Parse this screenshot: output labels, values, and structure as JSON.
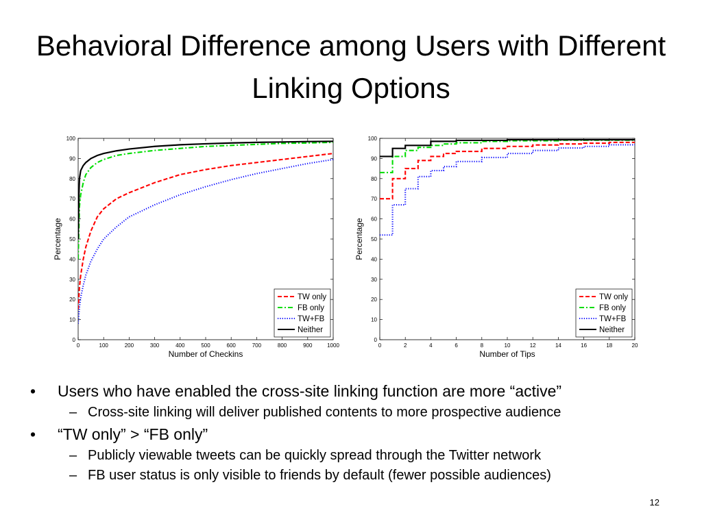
{
  "slide": {
    "title": "Behavioral Difference among Users with Different Linking Options",
    "page_number": "12",
    "bullets": [
      {
        "level": 1,
        "text": "Users who have enabled the cross-site linking function are more “active”"
      },
      {
        "level": 2,
        "text": "Cross-site linking will deliver published contents to more prospective audience"
      },
      {
        "level": 1,
        "text": "“TW only” > “FB only”"
      },
      {
        "level": 2,
        "text": "Publicly viewable tweets can be quickly spread through the Twitter network"
      },
      {
        "level": 2,
        "text": "FB user status is only visible to friends by default (fewer possible audiences)"
      }
    ]
  },
  "colors": {
    "tw_only": "#ff0000",
    "fb_only": "#00dd00",
    "tw_fb": "#0000ff",
    "neither": "#000000"
  },
  "chart_data": [
    {
      "type": "line",
      "xlabel": "Number of Checkins",
      "ylabel": "Percentage",
      "xlim": [
        0,
        1000
      ],
      "ylim": [
        0,
        100
      ],
      "xticks": [
        0,
        100,
        200,
        300,
        400,
        500,
        600,
        700,
        800,
        900,
        1000
      ],
      "yticks": [
        0,
        10,
        20,
        30,
        40,
        50,
        60,
        70,
        80,
        90,
        100
      ],
      "legend_position": "bottom-right",
      "grid": false,
      "series": [
        {
          "name": "TW only",
          "color": "#ff0000",
          "style": "dashed",
          "points": [
            [
              0,
              15
            ],
            [
              5,
              26
            ],
            [
              10,
              32
            ],
            [
              20,
              40
            ],
            [
              30,
              46
            ],
            [
              50,
              54
            ],
            [
              75,
              61
            ],
            [
              100,
              65
            ],
            [
              150,
              70
            ],
            [
              200,
              73
            ],
            [
              300,
              78
            ],
            [
              400,
              82
            ],
            [
              500,
              84.5
            ],
            [
              600,
              86.5
            ],
            [
              700,
              88
            ],
            [
              800,
              89.5
            ],
            [
              900,
              91
            ],
            [
              1000,
              92.5
            ]
          ]
        },
        {
          "name": "FB only",
          "color": "#00dd00",
          "style": "dashdot",
          "points": [
            [
              0,
              40
            ],
            [
              5,
              66
            ],
            [
              10,
              72
            ],
            [
              20,
              78
            ],
            [
              30,
              82
            ],
            [
              50,
              85.5
            ],
            [
              75,
              88
            ],
            [
              100,
              89.5
            ],
            [
              150,
              91.5
            ],
            [
              200,
              92.5
            ],
            [
              300,
              94
            ],
            [
              400,
              95
            ],
            [
              500,
              96
            ],
            [
              600,
              96.5
            ],
            [
              700,
              97
            ],
            [
              800,
              97.5
            ],
            [
              900,
              97.7
            ],
            [
              1000,
              98
            ]
          ]
        },
        {
          "name": "TW+FB",
          "color": "#0000ff",
          "style": "dotted",
          "points": [
            [
              0,
              8
            ],
            [
              5,
              16
            ],
            [
              10,
              21
            ],
            [
              20,
              27
            ],
            [
              30,
              32
            ],
            [
              50,
              39
            ],
            [
              75,
              45
            ],
            [
              100,
              50
            ],
            [
              150,
              56
            ],
            [
              200,
              61
            ],
            [
              300,
              67
            ],
            [
              400,
              72
            ],
            [
              500,
              76
            ],
            [
              600,
              79.5
            ],
            [
              700,
              82.5
            ],
            [
              800,
              85
            ],
            [
              900,
              87.5
            ],
            [
              1000,
              89.5
            ]
          ]
        },
        {
          "name": "Neither",
          "color": "#000000",
          "style": "solid",
          "points": [
            [
              0,
              50
            ],
            [
              3,
              72
            ],
            [
              5,
              80
            ],
            [
              10,
              84
            ],
            [
              20,
              86.5
            ],
            [
              30,
              88
            ],
            [
              50,
              90
            ],
            [
              75,
              91.5
            ],
            [
              100,
              92.5
            ],
            [
              150,
              93.8
            ],
            [
              200,
              94.7
            ],
            [
              300,
              96
            ],
            [
              400,
              96.8
            ],
            [
              500,
              97.3
            ],
            [
              600,
              97.7
            ],
            [
              700,
              98
            ],
            [
              800,
              98.2
            ],
            [
              900,
              98.4
            ],
            [
              1000,
              98.5
            ]
          ]
        }
      ]
    },
    {
      "type": "line",
      "xlabel": "Number of Tips",
      "ylabel": "Percentage",
      "xlim": [
        0,
        20
      ],
      "ylim": [
        0,
        100
      ],
      "xticks": [
        0,
        2,
        4,
        6,
        8,
        10,
        12,
        14,
        16,
        18,
        20
      ],
      "yticks": [
        0,
        10,
        20,
        30,
        40,
        50,
        60,
        70,
        80,
        90,
        100
      ],
      "legend_position": "bottom-right",
      "grid": false,
      "series": [
        {
          "name": "TW only",
          "color": "#ff0000",
          "style": "dashed",
          "step": true,
          "points": [
            [
              0,
              70
            ],
            [
              1,
              80
            ],
            [
              2,
              85
            ],
            [
              3,
              89
            ],
            [
              4,
              91
            ],
            [
              5,
              92.5
            ],
            [
              6,
              93.5
            ],
            [
              8,
              95
            ],
            [
              10,
              96
            ],
            [
              12,
              96.7
            ],
            [
              14,
              97.2
            ],
            [
              16,
              97.6
            ],
            [
              18,
              98
            ],
            [
              20,
              98.3
            ]
          ]
        },
        {
          "name": "FB only",
          "color": "#00dd00",
          "style": "dashdot",
          "step": true,
          "points": [
            [
              0,
              83
            ],
            [
              1,
              91
            ],
            [
              2,
              94
            ],
            [
              3,
              95.5
            ],
            [
              4,
              96.5
            ],
            [
              5,
              97.2
            ],
            [
              6,
              97.8
            ],
            [
              8,
              98.5
            ],
            [
              10,
              98.8
            ],
            [
              14,
              99.1
            ],
            [
              20,
              99.3
            ]
          ]
        },
        {
          "name": "TW+FB",
          "color": "#0000ff",
          "style": "dotted",
          "step": true,
          "points": [
            [
              0,
              52
            ],
            [
              1,
              67
            ],
            [
              2,
              75
            ],
            [
              3,
              81
            ],
            [
              4,
              84
            ],
            [
              5,
              86
            ],
            [
              6,
              88.5
            ],
            [
              8,
              90.5
            ],
            [
              10,
              92.5
            ],
            [
              12,
              94
            ],
            [
              14,
              95.2
            ],
            [
              16,
              96
            ],
            [
              18,
              96.8
            ],
            [
              20,
              97.5
            ]
          ]
        },
        {
          "name": "Neither",
          "color": "#000000",
          "style": "solid",
          "step": true,
          "points": [
            [
              0,
              91
            ],
            [
              1,
              95
            ],
            [
              2,
              96.5
            ],
            [
              4,
              98.5
            ],
            [
              6,
              99
            ],
            [
              10,
              99.3
            ],
            [
              20,
              99.5
            ]
          ]
        }
      ]
    }
  ]
}
